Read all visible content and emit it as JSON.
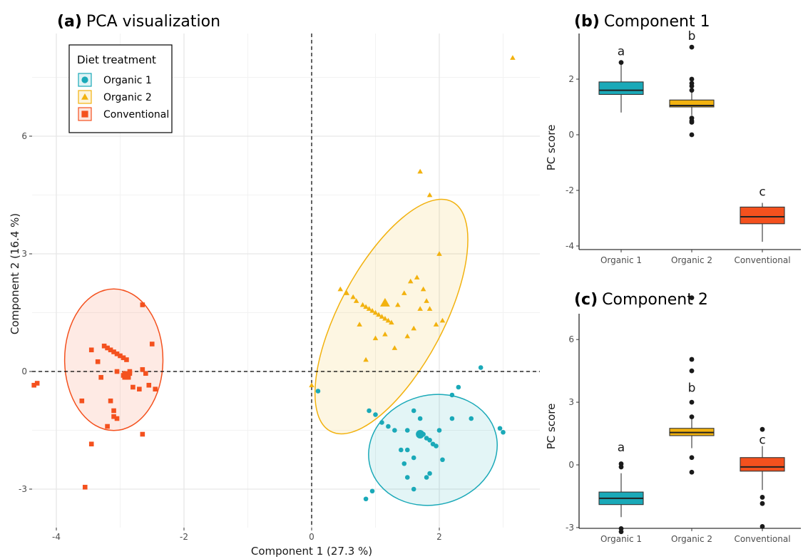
{
  "panels": {
    "a": {
      "letter": "(a)",
      "title": "PCA visualization",
      "xlabel": "Component 1 (27.3 %)",
      "ylabel": "Component 2 (16.4 %)"
    },
    "b": {
      "letter": "(b)",
      "title": "Component 1",
      "ylabel": "PC score"
    },
    "c": {
      "letter": "(c)",
      "title": "Component 2",
      "ylabel": "PC score"
    }
  },
  "legend": {
    "title": "Diet treatment",
    "placement": "top-left",
    "items": [
      {
        "label": "Organic 1",
        "color": "#1AA9B8",
        "shape": "circle"
      },
      {
        "label": "Organic 2",
        "color": "#F2B20F",
        "shape": "triangle"
      },
      {
        "label": "Conventional",
        "color": "#F4511E",
        "shape": "square"
      }
    ]
  },
  "chart_data": [
    {
      "type": "scatter",
      "title": "PCA visualization",
      "xlabel": "Component 1 (27.3 %)",
      "ylabel": "Component 2 (16.4 %)",
      "xlim": [
        -4.4,
        3.4
      ],
      "ylim": [
        -3.9,
        8.3
      ],
      "xticks": [
        -4,
        -2,
        0,
        2
      ],
      "yticks": [
        -3,
        0,
        3,
        6
      ],
      "grid": true,
      "reference_lines": {
        "x": 0,
        "y": 0,
        "style": "dashed"
      },
      "series": [
        {
          "name": "Organic 1",
          "color": "#1AA9B8",
          "shape": "circle",
          "centroid": [
            1.7,
            -1.6
          ],
          "ellipse": {
            "cx": 1.9,
            "cy": -2.0,
            "rx": 1.85,
            "ry": 1.47,
            "angle": -15
          },
          "points": [
            [
              0.1,
              -0.5
            ],
            [
              0.9,
              -1.0
            ],
            [
              1.0,
              -1.1
            ],
            [
              1.1,
              -1.3
            ],
            [
              1.2,
              -1.4
            ],
            [
              1.3,
              -1.5
            ],
            [
              1.5,
              -1.5
            ],
            [
              1.6,
              -1.0
            ],
            [
              1.7,
              -1.2
            ],
            [
              1.75,
              -1.6
            ],
            [
              1.8,
              -1.7
            ],
            [
              1.85,
              -1.75
            ],
            [
              1.9,
              -1.85
            ],
            [
              1.95,
              -1.9
            ],
            [
              2.0,
              -1.5
            ],
            [
              1.4,
              -2.0
            ],
            [
              1.5,
              -2.0
            ],
            [
              1.6,
              -2.2
            ],
            [
              1.45,
              -2.35
            ],
            [
              1.5,
              -2.7
            ],
            [
              1.8,
              -2.7
            ],
            [
              1.85,
              -2.6
            ],
            [
              2.05,
              -2.25
            ],
            [
              2.2,
              -1.2
            ],
            [
              2.2,
              -0.6
            ],
            [
              2.3,
              -0.4
            ],
            [
              2.5,
              -1.2
            ],
            [
              2.65,
              0.1
            ],
            [
              2.95,
              -1.45
            ],
            [
              3.0,
              -1.55
            ],
            [
              0.85,
              -3.25
            ],
            [
              0.95,
              -3.05
            ],
            [
              1.6,
              -3.0
            ]
          ]
        },
        {
          "name": "Organic 2",
          "color": "#F2B20F",
          "shape": "triangle",
          "centroid": [
            1.15,
            1.75
          ],
          "ellipse": {
            "cx": 1.25,
            "cy": 1.4,
            "rx": 3.7,
            "ry": 1.4,
            "angle": -62
          },
          "points": [
            [
              0.0,
              -0.35
            ],
            [
              0.45,
              2.1
            ],
            [
              0.55,
              2.0
            ],
            [
              0.65,
              1.9
            ],
            [
              0.7,
              1.8
            ],
            [
              0.8,
              1.7
            ],
            [
              0.85,
              1.65
            ],
            [
              0.9,
              1.6
            ],
            [
              0.95,
              1.55
            ],
            [
              1.0,
              1.5
            ],
            [
              1.05,
              1.45
            ],
            [
              1.1,
              1.4
            ],
            [
              1.15,
              1.35
            ],
            [
              1.2,
              1.3
            ],
            [
              1.25,
              1.25
            ],
            [
              1.35,
              1.7
            ],
            [
              1.45,
              2.0
            ],
            [
              1.55,
              2.3
            ],
            [
              1.65,
              2.4
            ],
            [
              1.75,
              2.1
            ],
            [
              1.8,
              1.8
            ],
            [
              1.85,
              1.6
            ],
            [
              1.95,
              1.2
            ],
            [
              2.05,
              1.3
            ],
            [
              1.5,
              0.9
            ],
            [
              1.6,
              1.1
            ],
            [
              1.7,
              1.6
            ],
            [
              0.75,
              1.2
            ],
            [
              0.85,
              0.3
            ],
            [
              1.0,
              0.85
            ],
            [
              1.15,
              0.95
            ],
            [
              1.3,
              0.6
            ],
            [
              1.7,
              5.1
            ],
            [
              1.85,
              4.5
            ],
            [
              2.0,
              3.0
            ],
            [
              3.15,
              8.0
            ]
          ]
        },
        {
          "name": "Conventional",
          "color": "#F4511E",
          "shape": "square",
          "centroid": [
            -2.9,
            -0.1
          ],
          "ellipse": {
            "cx": -3.1,
            "cy": 0.3,
            "rx": 1.4,
            "ry": 1.9,
            "angle": 0
          },
          "points": [
            [
              -4.35,
              -0.35
            ],
            [
              -4.3,
              -0.3
            ],
            [
              -3.6,
              -0.75
            ],
            [
              -3.45,
              0.55
            ],
            [
              -3.35,
              0.25
            ],
            [
              -3.25,
              0.65
            ],
            [
              -3.2,
              0.6
            ],
            [
              -3.15,
              0.55
            ],
            [
              -3.1,
              0.5
            ],
            [
              -3.05,
              0.45
            ],
            [
              -3.0,
              0.4
            ],
            [
              -2.95,
              0.35
            ],
            [
              -2.9,
              0.3
            ],
            [
              -2.95,
              -0.1
            ],
            [
              -2.9,
              -0.15
            ],
            [
              -2.85,
              -0.05
            ],
            [
              -2.85,
              0.0
            ],
            [
              -3.05,
              0.0
            ],
            [
              -2.65,
              0.05
            ],
            [
              -2.6,
              -0.05
            ],
            [
              -2.8,
              -0.4
            ],
            [
              -2.7,
              -0.45
            ],
            [
              -2.55,
              -0.35
            ],
            [
              -2.45,
              -0.45
            ],
            [
              -2.5,
              0.7
            ],
            [
              -3.3,
              -0.15
            ],
            [
              -3.15,
              -0.75
            ],
            [
              -3.1,
              -1.0
            ],
            [
              -3.05,
              -1.2
            ],
            [
              -3.2,
              -1.4
            ],
            [
              -3.1,
              -1.15
            ],
            [
              -2.65,
              1.7
            ],
            [
              -3.45,
              -1.85
            ],
            [
              -2.65,
              -1.6
            ],
            [
              -3.55,
              -2.95
            ]
          ]
        }
      ]
    },
    {
      "type": "box",
      "title": "Component 1",
      "ylabel": "PC score",
      "categories": [
        "Organic 1",
        "Organic 2",
        "Conventional"
      ],
      "ylim": [
        -4.2,
        3.5
      ],
      "yticks": [
        -4,
        -2,
        0,
        2
      ],
      "grid": false,
      "series": [
        {
          "name": "Organic 1",
          "color": "#1AA9B8",
          "letter": "a",
          "q1": 1.45,
          "median": 1.6,
          "q3": 1.9,
          "whisker_low": 0.8,
          "whisker_high": 2.55,
          "outliers": [
            2.6
          ]
        },
        {
          "name": "Organic 2",
          "color": "#F2B20F",
          "letter": "b",
          "q1": 1.0,
          "median": 1.05,
          "q3": 1.25,
          "whisker_low": 0.7,
          "whisker_high": 1.55,
          "outliers": [
            3.15,
            2.0,
            1.85,
            1.75,
            1.6,
            0.6,
            0.5,
            0.45,
            0.0
          ]
        },
        {
          "name": "Conventional",
          "color": "#F4511E",
          "letter": "c",
          "q1": -3.2,
          "median": -2.95,
          "q3": -2.6,
          "whisker_low": -3.85,
          "whisker_high": -2.45,
          "outliers": []
        }
      ]
    },
    {
      "type": "box",
      "title": "Component 2",
      "ylabel": "PC score",
      "categories": [
        "Organic 1",
        "Organic 2",
        "Conventional"
      ],
      "ylim": [
        -3.5,
        8.5
      ],
      "yticks": [
        -3,
        0,
        3,
        6
      ],
      "grid": false,
      "series": [
        {
          "name": "Organic 1",
          "color": "#1AA9B8",
          "letter": "a",
          "q1": -1.9,
          "median": -1.6,
          "q3": -1.3,
          "whisker_low": -2.5,
          "whisker_high": -0.4,
          "outliers": [
            0.05,
            -0.1,
            -3.05,
            -3.2
          ]
        },
        {
          "name": "Organic 2",
          "color": "#F2B20F",
          "letter": "b",
          "q1": 1.4,
          "median": 1.55,
          "q3": 1.75,
          "whisker_low": 0.8,
          "whisker_high": 2.2,
          "outliers": [
            8.0,
            5.05,
            4.5,
            3.0,
            2.3,
            0.35,
            -0.35
          ]
        },
        {
          "name": "Conventional",
          "color": "#F4511E",
          "letter": "c",
          "q1": -0.3,
          "median": -0.1,
          "q3": 0.35,
          "whisker_low": -1.2,
          "whisker_high": 0.9,
          "outliers": [
            1.7,
            -1.55,
            -1.85,
            -2.95
          ]
        }
      ]
    }
  ]
}
